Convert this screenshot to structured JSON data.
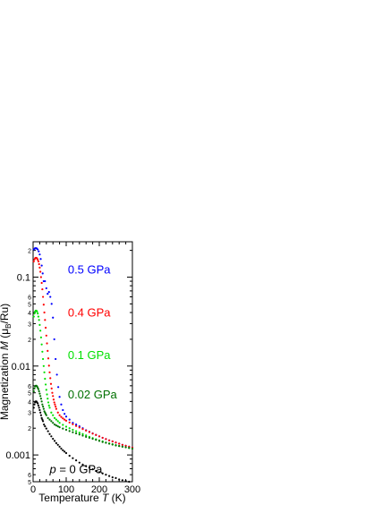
{
  "chart_data": {
    "type": "scatter",
    "x_axis": {
      "label_prefix": "Temperature ",
      "label_var": "T",
      "label_unit": " (K)",
      "range": [
        0,
        300
      ],
      "ticks": [
        "0",
        "100",
        "200",
        "300"
      ],
      "tick_values": [
        0,
        100,
        200,
        300
      ]
    },
    "y_axis": {
      "scale": "log",
      "label_prefix": "Magnetization ",
      "label_var": "M",
      "label_unit": "  (μ",
      "label_sub": "B",
      "label_end": "/Ru)",
      "range": [
        0.0005,
        0.25
      ],
      "major_ticks": [
        "0.001",
        "0.01",
        "0.1"
      ],
      "major_values": [
        0.001,
        0.01,
        0.1
      ],
      "minor_labels": [
        {
          "value": 0.0005,
          "text": "5"
        },
        {
          "value": 0.0006,
          "text": "6"
        },
        {
          "value": 0.002,
          "text": "2"
        },
        {
          "value": 0.003,
          "text": "3"
        },
        {
          "value": 0.004,
          "text": "4"
        },
        {
          "value": 0.005,
          "text": "5"
        },
        {
          "value": 0.006,
          "text": "6"
        },
        {
          "value": 0.02,
          "text": "2"
        },
        {
          "value": 0.03,
          "text": "3"
        },
        {
          "value": 0.04,
          "text": "4"
        },
        {
          "value": 0.05,
          "text": "5"
        },
        {
          "value": 0.06,
          "text": "6"
        },
        {
          "value": 0.2,
          "text": "2"
        }
      ]
    },
    "series": [
      {
        "name": "0.5 GPa",
        "color": "#0000ff",
        "points": [
          [
            2,
            0.205
          ],
          [
            5,
            0.21
          ],
          [
            8,
            0.212
          ],
          [
            11,
            0.21
          ],
          [
            14,
            0.205
          ],
          [
            17,
            0.195
          ],
          [
            20,
            0.18
          ],
          [
            23,
            0.16
          ],
          [
            26,
            0.135
          ],
          [
            29,
            0.11
          ],
          [
            32,
            0.09
          ],
          [
            36,
            0.09
          ],
          [
            40,
            0.075
          ],
          [
            44,
            0.065
          ],
          [
            48,
            0.068
          ],
          [
            52,
            0.06
          ],
          [
            56,
            0.05
          ],
          [
            60,
            0.035
          ],
          [
            64,
            0.02
          ],
          [
            68,
            0.012
          ],
          [
            72,
            0.008
          ],
          [
            76,
            0.0058
          ],
          [
            80,
            0.0045
          ],
          [
            85,
            0.0037
          ],
          [
            90,
            0.0032
          ],
          [
            95,
            0.0029
          ],
          [
            100,
            0.0027
          ],
          [
            110,
            0.0025
          ],
          [
            120,
            0.0023
          ],
          [
            130,
            0.0022
          ],
          [
            140,
            0.0021
          ],
          [
            150,
            0.002
          ],
          [
            160,
            0.0019
          ],
          [
            170,
            0.00182
          ],
          [
            180,
            0.00175
          ],
          [
            190,
            0.00168
          ],
          [
            200,
            0.00162
          ],
          [
            210,
            0.00156
          ],
          [
            220,
            0.00151
          ],
          [
            230,
            0.00146
          ],
          [
            240,
            0.00142
          ],
          [
            250,
            0.00138
          ],
          [
            260,
            0.00134
          ],
          [
            270,
            0.0013
          ],
          [
            280,
            0.00127
          ],
          [
            290,
            0.00124
          ],
          [
            300,
            0.00121
          ]
        ]
      },
      {
        "name": "0.4 GPa",
        "color": "#ff0000",
        "points": [
          [
            2,
            0.15
          ],
          [
            4,
            0.158
          ],
          [
            6,
            0.163
          ],
          [
            8,
            0.165
          ],
          [
            10,
            0.165
          ],
          [
            12,
            0.162
          ],
          [
            14,
            0.157
          ],
          [
            16,
            0.15
          ],
          [
            18,
            0.14
          ],
          [
            20,
            0.128
          ],
          [
            22,
            0.115
          ],
          [
            24,
            0.1
          ],
          [
            26,
            0.086
          ],
          [
            28,
            0.073
          ],
          [
            30,
            0.06
          ],
          [
            32,
            0.049
          ],
          [
            34,
            0.04
          ],
          [
            36,
            0.033
          ],
          [
            38,
            0.027
          ],
          [
            40,
            0.022
          ],
          [
            42,
            0.018
          ],
          [
            44,
            0.0148
          ],
          [
            46,
            0.0122
          ],
          [
            48,
            0.0101
          ],
          [
            50,
            0.0085
          ],
          [
            52,
            0.0073
          ],
          [
            54,
            0.0063
          ],
          [
            56,
            0.0056
          ],
          [
            58,
            0.005
          ],
          [
            60,
            0.0046
          ],
          [
            62,
            0.0042
          ],
          [
            64,
            0.0039
          ],
          [
            66,
            0.0037
          ],
          [
            68,
            0.0035
          ],
          [
            70,
            0.0033
          ],
          [
            75,
            0.003
          ],
          [
            80,
            0.0028
          ],
          [
            85,
            0.00268
          ],
          [
            90,
            0.00258
          ],
          [
            95,
            0.0025
          ],
          [
            100,
            0.00243
          ],
          [
            110,
            0.00232
          ],
          [
            120,
            0.00222
          ],
          [
            130,
            0.00212
          ],
          [
            140,
            0.00204
          ],
          [
            150,
            0.00196
          ],
          [
            160,
            0.00188
          ],
          [
            170,
            0.00181
          ],
          [
            180,
            0.00174
          ],
          [
            190,
            0.00168
          ],
          [
            200,
            0.00162
          ],
          [
            210,
            0.00156
          ],
          [
            220,
            0.00151
          ],
          [
            230,
            0.00146
          ],
          [
            240,
            0.00142
          ],
          [
            250,
            0.00138
          ],
          [
            260,
            0.00134
          ],
          [
            270,
            0.0013
          ],
          [
            280,
            0.00127
          ],
          [
            290,
            0.00124
          ],
          [
            300,
            0.00121
          ]
        ]
      },
      {
        "name": "0.1 GPa",
        "color": "#00e000",
        "points": [
          [
            2,
            0.036
          ],
          [
            4,
            0.039
          ],
          [
            6,
            0.041
          ],
          [
            8,
            0.042
          ],
          [
            10,
            0.042
          ],
          [
            12,
            0.041
          ],
          [
            14,
            0.039
          ],
          [
            16,
            0.036
          ],
          [
            18,
            0.033
          ],
          [
            20,
            0.029
          ],
          [
            22,
            0.025
          ],
          [
            24,
            0.021
          ],
          [
            26,
            0.0175
          ],
          [
            28,
            0.0145
          ],
          [
            30,
            0.012
          ],
          [
            32,
            0.01
          ],
          [
            34,
            0.0085
          ],
          [
            36,
            0.0072
          ],
          [
            38,
            0.0062
          ],
          [
            40,
            0.0054
          ],
          [
            42,
            0.0048
          ],
          [
            44,
            0.0043
          ],
          [
            46,
            0.0039
          ],
          [
            48,
            0.0036
          ],
          [
            50,
            0.0034
          ],
          [
            55,
            0.003
          ],
          [
            60,
            0.0028
          ],
          [
            65,
            0.0026
          ],
          [
            70,
            0.0025
          ],
          [
            75,
            0.0024
          ],
          [
            80,
            0.0023
          ],
          [
            90,
            0.00218
          ],
          [
            100,
            0.00208
          ],
          [
            110,
            0.002
          ],
          [
            120,
            0.00192
          ],
          [
            130,
            0.00185
          ],
          [
            140,
            0.00178
          ],
          [
            150,
            0.00172
          ],
          [
            160,
            0.00166
          ],
          [
            170,
            0.0016
          ],
          [
            180,
            0.00155
          ],
          [
            190,
            0.0015
          ],
          [
            200,
            0.00146
          ],
          [
            210,
            0.00142
          ],
          [
            220,
            0.00138
          ],
          [
            230,
            0.00135
          ],
          [
            240,
            0.00132
          ],
          [
            250,
            0.00129
          ],
          [
            260,
            0.00126
          ],
          [
            270,
            0.00124
          ],
          [
            280,
            0.00122
          ],
          [
            290,
            0.0012
          ],
          [
            300,
            0.00118
          ]
        ]
      },
      {
        "name": "0.02 GPa",
        "color": "#007000",
        "points": [
          [
            2,
            0.0052
          ],
          [
            4,
            0.0056
          ],
          [
            6,
            0.0059
          ],
          [
            8,
            0.006
          ],
          [
            10,
            0.006
          ],
          [
            12,
            0.0059
          ],
          [
            14,
            0.0057
          ],
          [
            16,
            0.0055
          ],
          [
            18,
            0.0052
          ],
          [
            20,
            0.0049
          ],
          [
            22,
            0.0046
          ],
          [
            24,
            0.0043
          ],
          [
            26,
            0.004
          ],
          [
            28,
            0.0037
          ],
          [
            30,
            0.0035
          ],
          [
            32,
            0.0033
          ],
          [
            34,
            0.0031
          ],
          [
            36,
            0.003
          ],
          [
            38,
            0.0029
          ],
          [
            40,
            0.0028
          ],
          [
            45,
            0.0026
          ],
          [
            50,
            0.0025
          ],
          [
            55,
            0.0024
          ],
          [
            60,
            0.0023
          ],
          [
            65,
            0.0022
          ],
          [
            70,
            0.00215
          ],
          [
            75,
            0.0021
          ],
          [
            80,
            0.00205
          ],
          [
            90,
            0.00198
          ],
          [
            100,
            0.00192
          ],
          [
            110,
            0.00186
          ],
          [
            120,
            0.0018
          ],
          [
            130,
            0.00175
          ],
          [
            140,
            0.0017
          ],
          [
            150,
            0.00165
          ],
          [
            160,
            0.0016
          ],
          [
            170,
            0.00156
          ],
          [
            180,
            0.00152
          ],
          [
            190,
            0.00148
          ],
          [
            200,
            0.00144
          ],
          [
            210,
            0.0014
          ],
          [
            220,
            0.00137
          ],
          [
            230,
            0.00134
          ],
          [
            240,
            0.00131
          ],
          [
            250,
            0.00128
          ],
          [
            260,
            0.00126
          ],
          [
            270,
            0.00124
          ],
          [
            280,
            0.00122
          ],
          [
            290,
            0.0012
          ],
          [
            300,
            0.00118
          ]
        ]
      },
      {
        "name": "p = 0 GPa",
        "color": "#000000",
        "points": [
          [
            2,
            0.0034
          ],
          [
            4,
            0.0037
          ],
          [
            6,
            0.0039
          ],
          [
            8,
            0.004
          ],
          [
            10,
            0.004
          ],
          [
            12,
            0.0039
          ],
          [
            14,
            0.0038
          ],
          [
            16,
            0.0036
          ],
          [
            18,
            0.0034
          ],
          [
            20,
            0.0032
          ],
          [
            22,
            0.003
          ],
          [
            24,
            0.0028
          ],
          [
            26,
            0.0026
          ],
          [
            28,
            0.0025
          ],
          [
            30,
            0.0024
          ],
          [
            33,
            0.0022
          ],
          [
            36,
            0.0021
          ],
          [
            40,
            0.00198
          ],
          [
            45,
            0.00185
          ],
          [
            50,
            0.00172
          ],
          [
            55,
            0.00162
          ],
          [
            60,
            0.00152
          ],
          [
            65,
            0.00144
          ],
          [
            70,
            0.00136
          ],
          [
            75,
            0.0013
          ],
          [
            80,
            0.00124
          ],
          [
            85,
            0.00118
          ],
          [
            90,
            0.00113
          ],
          [
            95,
            0.00109
          ],
          [
            100,
            0.00105
          ],
          [
            110,
            0.00098
          ],
          [
            120,
            0.00092
          ],
          [
            130,
            0.00087
          ],
          [
            140,
            0.00082
          ],
          [
            150,
            0.00078
          ],
          [
            160,
            0.00075
          ],
          [
            170,
            0.00072
          ],
          [
            180,
            0.00069
          ],
          [
            190,
            0.00066
          ],
          [
            200,
            0.00064
          ],
          [
            210,
            0.00062
          ],
          [
            220,
            0.0006
          ],
          [
            230,
            0.00058
          ],
          [
            240,
            0.00056
          ],
          [
            250,
            0.00055
          ],
          [
            260,
            0.00053
          ],
          [
            270,
            0.00052
          ],
          [
            280,
            0.00051
          ],
          [
            290,
            0.0005
          ],
          [
            300,
            0.00049
          ]
        ]
      }
    ],
    "annotations": [
      {
        "text": "0.5 GPa",
        "color": "#0000ff",
        "x": 105,
        "y": 0.11
      },
      {
        "text": "0.4 GPa",
        "color": "#ff0000",
        "x": 105,
        "y": 0.036
      },
      {
        "text": "0.1 GPa",
        "color": "#00e000",
        "x": 105,
        "y": 0.012
      },
      {
        "text": "0.02 GPa",
        "color": "#007000",
        "x": 105,
        "y": 0.0043
      },
      {
        "text_var": "p",
        "text": " = 0 GPa",
        "color": "#000000",
        "x": 50,
        "y": 0.00062
      }
    ]
  }
}
